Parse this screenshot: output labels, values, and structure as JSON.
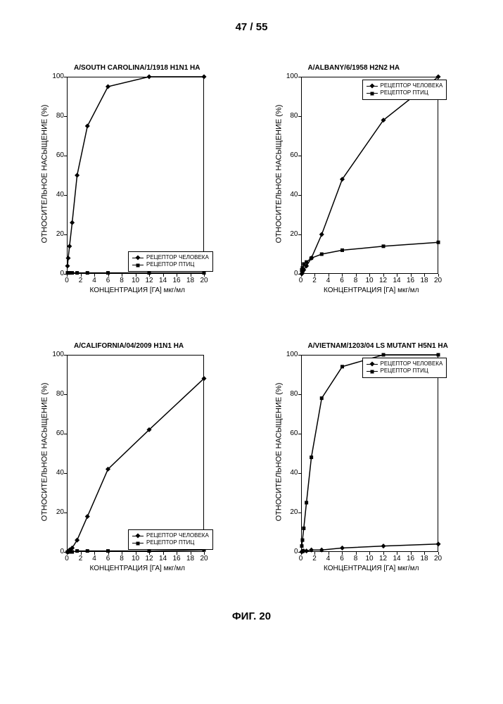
{
  "page_number": "47 / 55",
  "figure_caption": "ФИГ. 20",
  "axis_labels": {
    "y": "ОТНОСИТЕЛЬНОЕ НАСЫЩЕНИЕ (%)",
    "x": "КОНЦЕНТРАЦИЯ [ГА] мкг/мл"
  },
  "legend": {
    "human": "РЕЦЕПТОР ЧЕЛОВЕКА",
    "bird": "РЕЦЕПТОР ПТИЦ"
  },
  "style": {
    "background_color": "#ffffff",
    "axis_color": "#000000",
    "line_color": "#000000",
    "line_width": 1.5,
    "marker_size": 5,
    "font_size_title": 10,
    "font_size_tick": 10,
    "font_size_axis_label": 11,
    "font_size_legend": 8,
    "ylim": [
      0,
      100
    ],
    "ytick_step": 20,
    "xlim": [
      0,
      20
    ],
    "xtick_step": 2,
    "yticks": [
      0,
      20,
      40,
      60,
      80,
      100
    ],
    "xticks": [
      0,
      2,
      4,
      6,
      8,
      10,
      12,
      14,
      16,
      18,
      20
    ]
  },
  "panels": [
    {
      "id": "top-left",
      "title": "A/SOUTH CAROLINA/1/1918 H1N1 HA",
      "series": [
        {
          "name": "human",
          "marker": "diamond",
          "x": [
            0.1,
            0.2,
            0.39,
            0.78,
            1.5,
            3,
            6,
            12,
            20
          ],
          "y": [
            4,
            8,
            14,
            26,
            50,
            75,
            95,
            100,
            100
          ]
        },
        {
          "name": "bird",
          "marker": "square",
          "x": [
            0.1,
            0.2,
            0.39,
            0.78,
            1.5,
            3,
            6,
            12,
            20
          ],
          "y": [
            0.5,
            0.5,
            0.5,
            0.5,
            0.5,
            0.5,
            0.5,
            0.5,
            0.5
          ]
        }
      ],
      "legend_pos": "bottom-right"
    },
    {
      "id": "top-right",
      "title": "A/ALBANY/6/1958 H2N2 HA",
      "series": [
        {
          "name": "human",
          "marker": "diamond",
          "x": [
            0.1,
            0.2,
            0.39,
            0.78,
            1.5,
            3,
            6,
            12,
            20
          ],
          "y": [
            0,
            1,
            2,
            4,
            8,
            20,
            48,
            78,
            100
          ]
        },
        {
          "name": "bird",
          "marker": "square",
          "x": [
            0.1,
            0.2,
            0.39,
            0.78,
            1.5,
            3,
            6,
            12,
            20
          ],
          "y": [
            2,
            3,
            5,
            6,
            8,
            10,
            12,
            14,
            16
          ]
        }
      ],
      "legend_pos": "top-right"
    },
    {
      "id": "bottom-left",
      "title": "A/CALIFORNIA/04/2009 H1N1 HA",
      "series": [
        {
          "name": "human",
          "marker": "diamond",
          "x": [
            0.1,
            0.2,
            0.39,
            0.78,
            1.5,
            3,
            6,
            12,
            20
          ],
          "y": [
            0,
            0,
            1,
            2,
            6,
            18,
            42,
            62,
            88
          ]
        },
        {
          "name": "bird",
          "marker": "square",
          "x": [
            0.1,
            0.2,
            0.39,
            0.78,
            1.5,
            3,
            6,
            12,
            20
          ],
          "y": [
            0,
            0,
            0,
            0,
            0.5,
            0.5,
            0.5,
            0.5,
            1
          ]
        }
      ],
      "legend_pos": "bottom-right"
    },
    {
      "id": "bottom-right",
      "title": "A/VIETNAM/1203/04 LS MUTANT H5N1 HA",
      "series": [
        {
          "name": "human",
          "marker": "diamond",
          "x": [
            0.1,
            0.2,
            0.39,
            0.78,
            1.5,
            3,
            6,
            12,
            20
          ],
          "y": [
            0,
            0.5,
            0.5,
            0.5,
            1,
            1,
            2,
            3,
            4
          ]
        },
        {
          "name": "bird",
          "marker": "square",
          "x": [
            0.1,
            0.2,
            0.39,
            0.78,
            1.5,
            3,
            6,
            12,
            20
          ],
          "y": [
            3,
            6,
            12,
            25,
            48,
            78,
            94,
            100,
            100
          ]
        }
      ],
      "legend_pos": "top-right"
    }
  ]
}
